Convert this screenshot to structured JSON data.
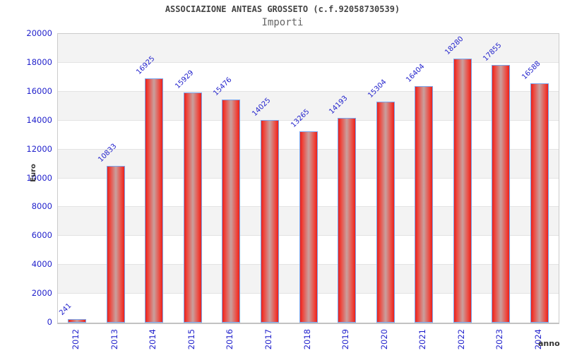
{
  "chart_data": {
    "type": "bar",
    "title": "ASSOCIAZIONE ANTEAS GROSSETO (c.f.92058730539)",
    "subtitle": "Importi",
    "xlabel": "anno",
    "ylabel": "Euro",
    "categories": [
      "2012",
      "2013",
      "2014",
      "2015",
      "2016",
      "2017",
      "2018",
      "2019",
      "2020",
      "2021",
      "2022",
      "2023",
      "2024"
    ],
    "values": [
      241,
      10833,
      16925,
      15929,
      15476,
      14025,
      13265,
      14193,
      15304,
      16404,
      18280,
      17855,
      16588
    ],
    "ylim": [
      0,
      20000
    ],
    "ytick_step": 2000,
    "grid": true,
    "background_bands": "alternating gray/white every 2000",
    "bar_labels_rotation_deg": -45,
    "x_tick_rotation_deg": -90,
    "legend": "none"
  },
  "colors": {
    "tick_and_data_label": "#2222cc",
    "title": "#444444",
    "subtitle": "#666666",
    "axis_title": "#333333",
    "bar_edge_red": "#e8221c",
    "bar_mid_red": "#ee453c",
    "bar_center_light": "#c9a09e",
    "bar_border_blue": "#7aa4ec",
    "band_gray": "#f3f3f3",
    "gridline": "#e3e3e3",
    "plot_border": "#cbcbcb"
  }
}
